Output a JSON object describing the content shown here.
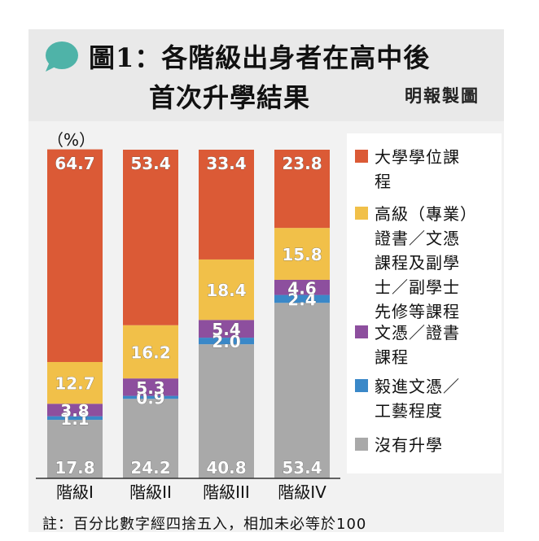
{
  "header": {
    "title_line1": "圖1：各階級出身者在高中後",
    "title_line2": "首次升學結果",
    "credit": "明報製圖"
  },
  "footnote": "註：百分比數字經四捨五入，相加未必等於100",
  "chart_data": {
    "type": "bar",
    "stacked": true,
    "unit_label": "（%）",
    "categories": [
      "階級I",
      "階級II",
      "階級III",
      "階級IV"
    ],
    "series": [
      {
        "name": "沒有升學",
        "color": "#a9a9a9",
        "values": [
          17.8,
          24.2,
          40.8,
          53.4
        ]
      },
      {
        "name": "毅進文憑／工藝程度",
        "color": "#3a88c8",
        "values": [
          1.1,
          0.9,
          2.0,
          2.4
        ]
      },
      {
        "name": "文憑／證書課程",
        "color": "#8d4f9e",
        "values": [
          3.8,
          5.3,
          5.4,
          4.6
        ]
      },
      {
        "name": "高級（專業）證書／文憑課程及副學士／副學士先修等課程",
        "color": "#f1c049",
        "values": [
          12.7,
          16.2,
          18.4,
          15.8
        ]
      },
      {
        "name": "大學學位課程",
        "color": "#db5a36",
        "values": [
          64.7,
          53.4,
          33.4,
          23.8
        ]
      }
    ],
    "legend": {
      "placement": "right",
      "order": [
        "大學學位課程",
        "高級（專業）證書／文憑課程及副學士／副學士先修等課程",
        "文憑／證書課程",
        "毅進文憑／工藝程度",
        "沒有升學"
      ],
      "lines": [
        [
          "大學學位課",
          "程"
        ],
        [
          "高級（專業）",
          "證書／文憑",
          "課程及副學",
          "士／副學士",
          "先修等課程"
        ],
        [
          "文憑／證書",
          "課程"
        ],
        [
          "毅進文憑／",
          "工藝程度"
        ],
        [
          "沒有升學"
        ]
      ]
    },
    "ylim": [
      0,
      100
    ],
    "grid": false,
    "data_labels": true
  }
}
